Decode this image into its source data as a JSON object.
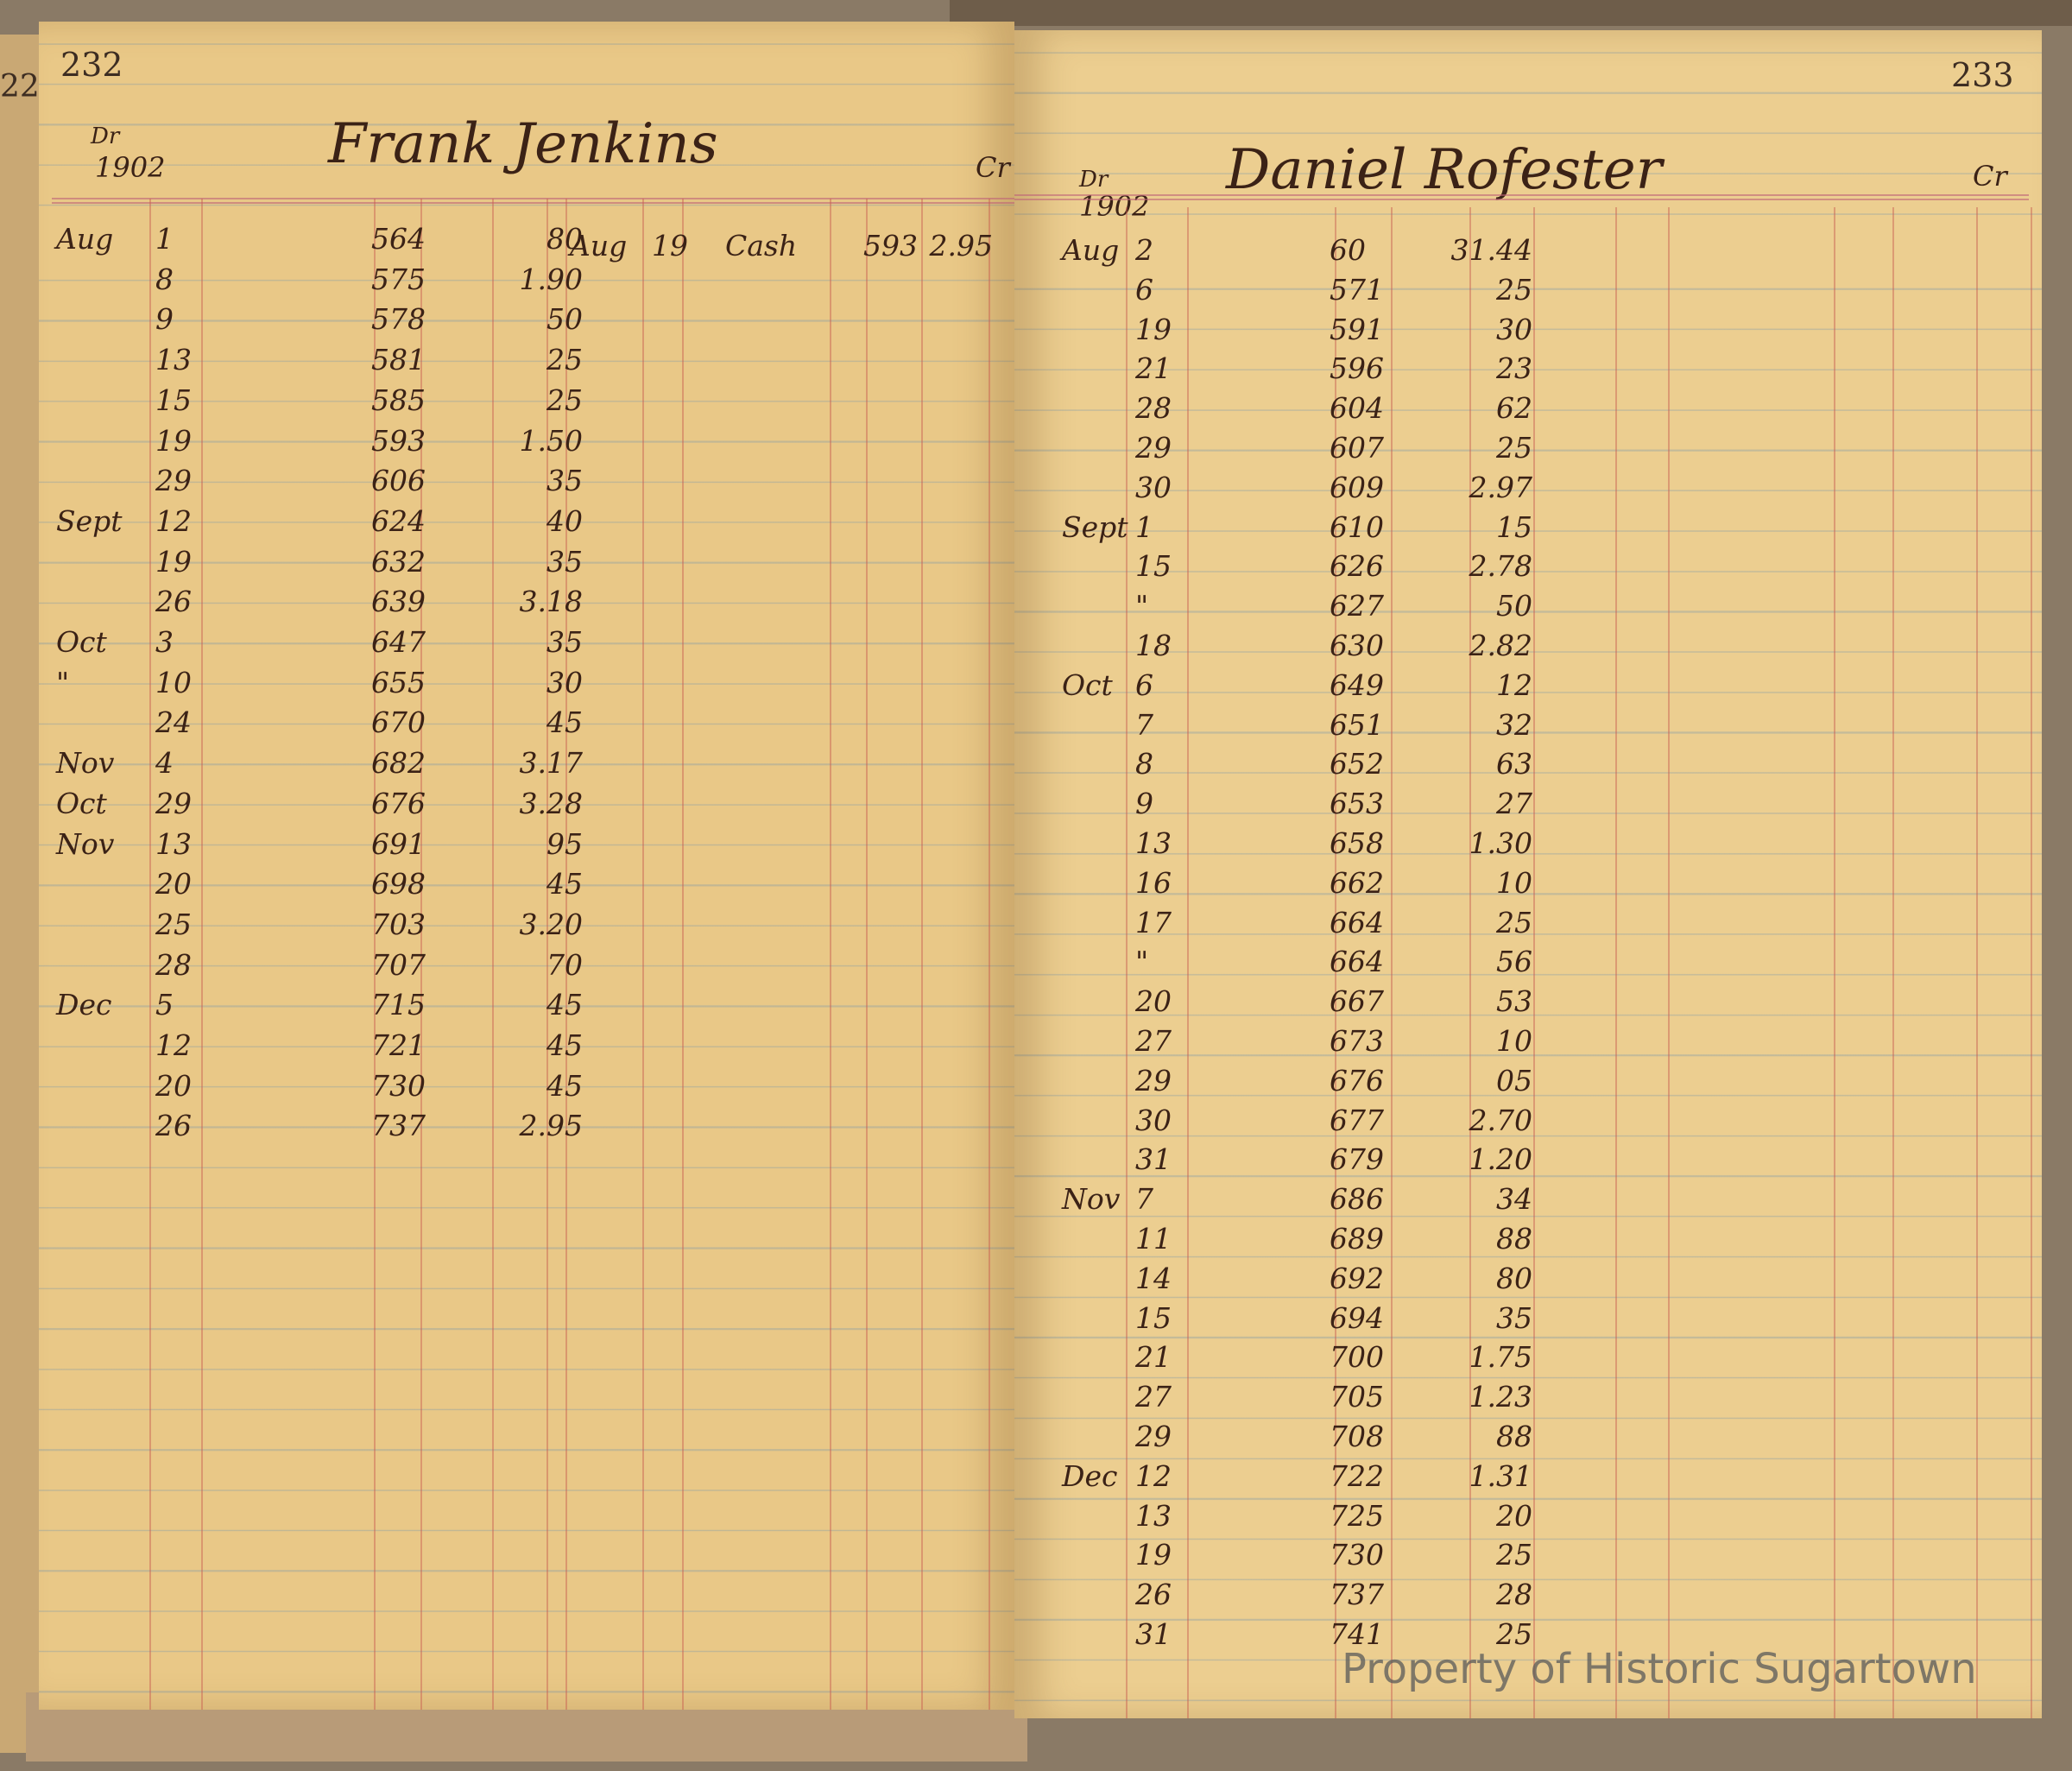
{
  "left_page": {
    "page_number": "232",
    "prior_page_number": "22",
    "dr_label": "Dr",
    "year": "1902",
    "account_name": "Frank Jenkins",
    "cr_label": "Cr",
    "debits": [
      {
        "month": "Aug",
        "day": "1",
        "folio": "564",
        "amount": "80"
      },
      {
        "month": "",
        "day": "8",
        "folio": "575",
        "amount": "1.90"
      },
      {
        "month": "",
        "day": "9",
        "folio": "578",
        "amount": "50"
      },
      {
        "month": "",
        "day": "13",
        "folio": "581",
        "amount": "25"
      },
      {
        "month": "",
        "day": "15",
        "folio": "585",
        "amount": "25"
      },
      {
        "month": "",
        "day": "19",
        "folio": "593",
        "amount": "1.50"
      },
      {
        "month": "",
        "day": "29",
        "folio": "606",
        "amount": "35"
      },
      {
        "month": "Sept",
        "day": "12",
        "folio": "624",
        "amount": "40"
      },
      {
        "month": "",
        "day": "19",
        "folio": "632",
        "amount": "35"
      },
      {
        "month": "",
        "day": "26",
        "folio": "639",
        "amount": "3.18"
      },
      {
        "month": "Oct",
        "day": "3",
        "folio": "647",
        "amount": "35"
      },
      {
        "month": "\"",
        "day": "10",
        "folio": "655",
        "amount": "30"
      },
      {
        "month": "",
        "day": "24",
        "folio": "670",
        "amount": "45"
      },
      {
        "month": "Nov",
        "day": "4",
        "folio": "682",
        "amount": "3.17"
      },
      {
        "month": "Oct",
        "day": "29",
        "folio": "676",
        "amount": "3.28"
      },
      {
        "month": "Nov",
        "day": "13",
        "folio": "691",
        "amount": "95"
      },
      {
        "month": "",
        "day": "20",
        "folio": "698",
        "amount": "45"
      },
      {
        "month": "",
        "day": "25",
        "folio": "703",
        "amount": "3.20"
      },
      {
        "month": "",
        "day": "28",
        "folio": "707",
        "amount": "70"
      },
      {
        "month": "Dec",
        "day": "5",
        "folio": "715",
        "amount": "45"
      },
      {
        "month": "",
        "day": "12",
        "folio": "721",
        "amount": "45"
      },
      {
        "month": "",
        "day": "20",
        "folio": "730",
        "amount": "45"
      },
      {
        "month": "",
        "day": "26",
        "folio": "737",
        "amount": "2.95"
      }
    ],
    "credits": [
      {
        "month": "Aug",
        "day": "19",
        "description": "Cash",
        "folio": "593",
        "amount": "2.95"
      }
    ]
  },
  "right_page": {
    "page_number": "233",
    "dr_label": "Dr",
    "year": "1902",
    "account_name": "Daniel Rofester",
    "cr_label": "Cr",
    "debits": [
      {
        "month": "Aug",
        "day": "2",
        "folio": "60",
        "amount": "31.44"
      },
      {
        "month": "",
        "day": "6",
        "folio": "571",
        "amount": "25"
      },
      {
        "month": "",
        "day": "19",
        "folio": "591",
        "amount": "30"
      },
      {
        "month": "",
        "day": "21",
        "folio": "596",
        "amount": "23"
      },
      {
        "month": "",
        "day": "28",
        "folio": "604",
        "amount": "62"
      },
      {
        "month": "",
        "day": "29",
        "folio": "607",
        "amount": "25"
      },
      {
        "month": "",
        "day": "30",
        "folio": "609",
        "amount": "2.97"
      },
      {
        "month": "Sept",
        "day": "1",
        "folio": "610",
        "amount": "15"
      },
      {
        "month": "",
        "day": "15",
        "folio": "626",
        "amount": "2.78"
      },
      {
        "month": "",
        "day": "\"",
        "folio": "627",
        "amount": "50"
      },
      {
        "month": "",
        "day": "18",
        "folio": "630",
        "amount": "2.82"
      },
      {
        "month": "Oct",
        "day": "6",
        "folio": "649",
        "amount": "12"
      },
      {
        "month": "",
        "day": "7",
        "folio": "651",
        "amount": "32"
      },
      {
        "month": "",
        "day": "8",
        "folio": "652",
        "amount": "63"
      },
      {
        "month": "",
        "day": "9",
        "folio": "653",
        "amount": "27"
      },
      {
        "month": "",
        "day": "13",
        "folio": "658",
        "amount": "1.30"
      },
      {
        "month": "",
        "day": "16",
        "folio": "662",
        "amount": "10"
      },
      {
        "month": "",
        "day": "17",
        "folio": "664",
        "amount": "25"
      },
      {
        "month": "",
        "day": "\"",
        "folio": "664",
        "amount": "56"
      },
      {
        "month": "",
        "day": "20",
        "folio": "667",
        "amount": "53"
      },
      {
        "month": "",
        "day": "27",
        "folio": "673",
        "amount": "10"
      },
      {
        "month": "",
        "day": "29",
        "folio": "676",
        "amount": "05"
      },
      {
        "month": "",
        "day": "30",
        "folio": "677",
        "amount": "2.70"
      },
      {
        "month": "",
        "day": "31",
        "folio": "679",
        "amount": "1.20"
      },
      {
        "month": "Nov",
        "day": "7",
        "folio": "686",
        "amount": "34"
      },
      {
        "month": "",
        "day": "11",
        "folio": "689",
        "amount": "88"
      },
      {
        "month": "",
        "day": "14",
        "folio": "692",
        "amount": "80"
      },
      {
        "month": "",
        "day": "15",
        "folio": "694",
        "amount": "35"
      },
      {
        "month": "",
        "day": "21",
        "folio": "700",
        "amount": "1.75"
      },
      {
        "month": "",
        "day": "27",
        "folio": "705",
        "amount": "1.23"
      },
      {
        "month": "",
        "day": "29",
        "folio": "708",
        "amount": "88"
      },
      {
        "month": "Dec",
        "day": "12",
        "folio": "722",
        "amount": "1.31"
      },
      {
        "month": "",
        "day": "13",
        "folio": "725",
        "amount": "20"
      },
      {
        "month": "",
        "day": "19",
        "folio": "730",
        "amount": "25"
      },
      {
        "month": "",
        "day": "26",
        "folio": "737",
        "amount": "28"
      },
      {
        "month": "",
        "day": "31",
        "folio": "741",
        "amount": "25"
      }
    ]
  },
  "watermark": "Property of Historic Sugartown",
  "colors": {
    "paper": "#e9c887",
    "ink": "#3b2216",
    "rule_red": "#c85a50",
    "rule_blue": "#7896aa"
  }
}
